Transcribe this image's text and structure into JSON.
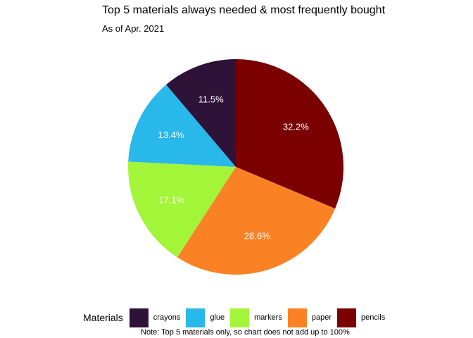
{
  "chart_data": {
    "type": "pie",
    "title": "Top 5 materials always needed & most frequently bought",
    "subtitle": "As of Apr. 2021",
    "legend_title": "Materials",
    "legend_position": "bottom",
    "caption": "Note: Top 5 materials only, so chart does not add up to 100%",
    "categories": [
      "crayons",
      "glue",
      "markers",
      "paper",
      "pencils"
    ],
    "values": [
      11.5,
      13.4,
      17.1,
      28.6,
      32.2
    ],
    "labels": [
      "11.5%",
      "13.4%",
      "17.1%",
      "28.6%",
      "32.2%"
    ],
    "colors": [
      "#2e1238",
      "#29b8ea",
      "#a3f53a",
      "#fb8224",
      "#7b0000"
    ],
    "slice_order": [
      "pencils",
      "paper",
      "markers",
      "glue",
      "crayons"
    ],
    "direction": "clockwise from 12 o'clock"
  }
}
